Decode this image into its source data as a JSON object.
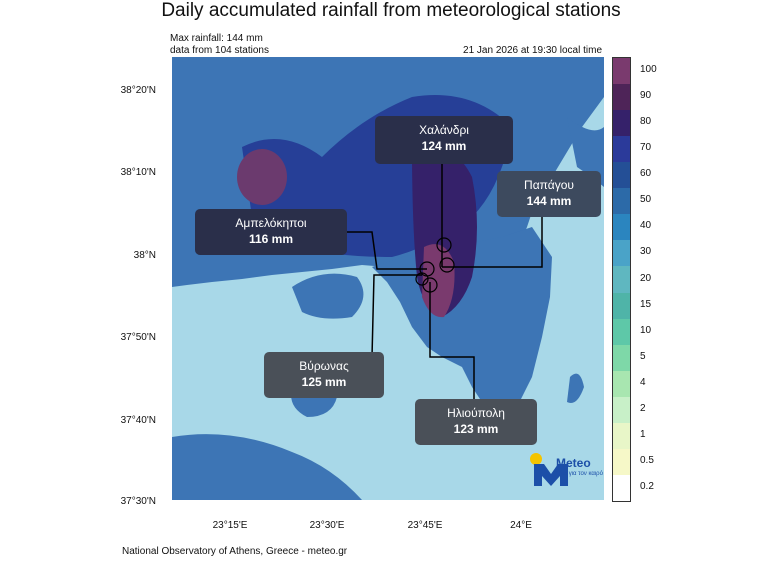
{
  "title": "Daily accumulated rainfall from meteorological stations",
  "max_rainfall": "Max rainfall: 144 mm",
  "station_count": "data from 104 stations",
  "timestamp": "21 Jan 2026 at 19:30 local time",
  "footer": "National Observatory of Athens, Greece - meteo.gr",
  "lat_labels": [
    "38°20'N",
    "38°10'N",
    "38°N",
    "37°50'N",
    "37°40'N",
    "37°30'N"
  ],
  "lon_labels": [
    "23°15'E",
    "23°30'E",
    "23°45'E",
    "24°E"
  ],
  "legend": {
    "labels": [
      "100",
      "90",
      "80",
      "70",
      "60",
      "50",
      "40",
      "30",
      "20",
      "15",
      "10",
      "5",
      "4",
      "2",
      "1",
      "0.5",
      "0.2"
    ],
    "colors": [
      "#7a3a6e",
      "#4e2458",
      "#35216a",
      "#2b3a9a",
      "#244f96",
      "#2c6aa8",
      "#2b85bf",
      "#4aa3c8",
      "#5fb7c0",
      "#4fb4a8",
      "#5ec8a8",
      "#7ed8a8",
      "#a8e6b0",
      "#c8f0c8",
      "#e8f6c8",
      "#f6f8c8",
      "#ffffff"
    ]
  },
  "callouts": [
    {
      "name": "Χαλάνδρι",
      "value": "124 mm"
    },
    {
      "name": "Παπάγου",
      "value": "144 mm"
    },
    {
      "name": "Αμπελόκηποι",
      "value": "116 mm"
    },
    {
      "name": "Βύρωνας",
      "value": "125 mm"
    },
    {
      "name": "Ηλιούπολη",
      "value": "123 mm"
    }
  ],
  "logo": {
    "brand": "Meteo",
    "tagline": "Όλα για τον καιρό"
  },
  "colors": {
    "sea": "#a8d8e8",
    "land_light": "#3d75b5",
    "land_dark": "#233c93",
    "peak": "#6b3a6e"
  }
}
